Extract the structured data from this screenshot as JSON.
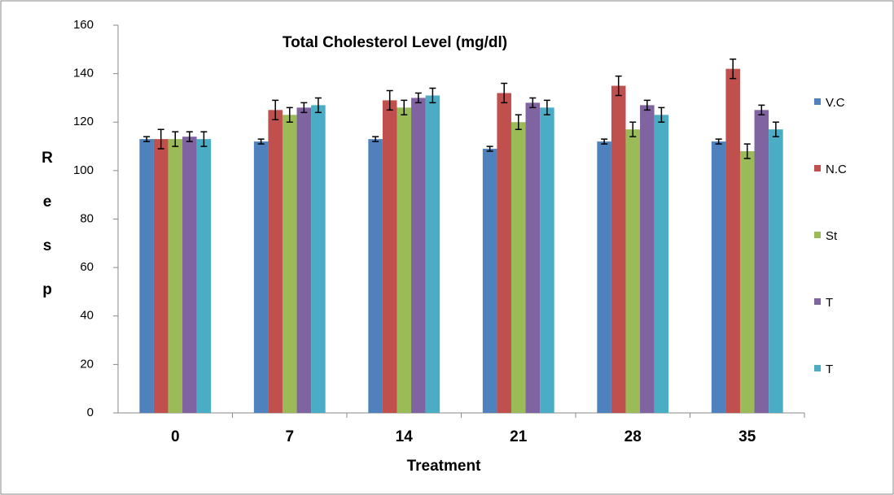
{
  "chart_data": {
    "type": "bar",
    "title": "Total Cholesterol Level (mg/dl)",
    "x_label": "Treatment",
    "y_label": "Resp",
    "categories": [
      "0",
      "7",
      "14",
      "21",
      "28",
      "35"
    ],
    "ylim": [
      0,
      160
    ],
    "yticks": [
      0,
      20,
      40,
      60,
      80,
      100,
      120,
      140,
      160
    ],
    "series": [
      {
        "name": "V.C",
        "color": "#4f81bd",
        "values": [
          113,
          112,
          113,
          109,
          112,
          112
        ],
        "errors": [
          1,
          1,
          1,
          1,
          1,
          1
        ]
      },
      {
        "name": "N.C",
        "color": "#c0504d",
        "values": [
          113,
          125,
          129,
          132,
          135,
          142
        ],
        "errors": [
          4,
          4,
          4,
          4,
          4,
          4
        ]
      },
      {
        "name": "St",
        "color": "#9bbb59",
        "values": [
          113,
          123,
          126,
          120,
          117,
          108
        ],
        "errors": [
          3,
          3,
          3,
          3,
          3,
          3
        ]
      },
      {
        "name": "T",
        "color": "#8064a2",
        "values": [
          114,
          126,
          130,
          128,
          127,
          125
        ],
        "errors": [
          2,
          2,
          2,
          2,
          2,
          2
        ]
      },
      {
        "name": "T",
        "color": "#4bacc6",
        "values": [
          113,
          127,
          131,
          126,
          123,
          117
        ],
        "errors": [
          3,
          3,
          3,
          3,
          3,
          3
        ]
      }
    ]
  }
}
